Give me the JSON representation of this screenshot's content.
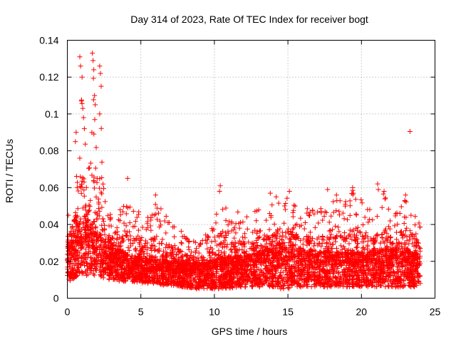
{
  "chart_data": {
    "type": "scatter",
    "title": "Day 314 of 2023, Rate Of TEC Index for receiver bogt",
    "xlabel": "GPS time / hours",
    "ylabel": "ROTI / TECUs",
    "xlim": [
      0,
      25
    ],
    "ylim": [
      0,
      0.14
    ],
    "x_ticks": [
      "0",
      "5",
      "10",
      "15",
      "20",
      "25"
    ],
    "y_ticks": [
      "0",
      "0.02",
      "0.04",
      "0.06",
      "0.08",
      "0.1",
      "0.12",
      "0.14"
    ],
    "grid": true,
    "marker": "+",
    "series_color": "#ff0000",
    "envelope": {
      "x": [
        0,
        0.25,
        0.5,
        0.75,
        1,
        1.25,
        1.5,
        1.75,
        2,
        2.25,
        2.5,
        2.75,
        3,
        3.5,
        4,
        4.5,
        5,
        5.5,
        6,
        6.5,
        7,
        7.5,
        8,
        8.5,
        9,
        9.5,
        10,
        10.5,
        11,
        11.5,
        12,
        12.5,
        13,
        13.5,
        14,
        14.5,
        15,
        15.5,
        16,
        16.5,
        17,
        17.5,
        18,
        18.5,
        19,
        19.5,
        20,
        20.5,
        21,
        21.5,
        22,
        22.5,
        23,
        23.5,
        24
      ],
      "low": [
        0.01,
        0.009,
        0.01,
        0.012,
        0.013,
        0.012,
        0.013,
        0.012,
        0.012,
        0.011,
        0.011,
        0.01,
        0.01,
        0.009,
        0.009,
        0.009,
        0.008,
        0.008,
        0.008,
        0.007,
        0.007,
        0.006,
        0.006,
        0.005,
        0.005,
        0.005,
        0.005,
        0.005,
        0.005,
        0.006,
        0.006,
        0.006,
        0.006,
        0.006,
        0.006,
        0.005,
        0.005,
        0.006,
        0.006,
        0.006,
        0.006,
        0.006,
        0.006,
        0.006,
        0.006,
        0.006,
        0.006,
        0.006,
        0.006,
        0.006,
        0.006,
        0.006,
        0.006,
        0.006,
        0.007
      ],
      "mid": [
        0.022,
        0.024,
        0.027,
        0.03,
        0.033,
        0.032,
        0.031,
        0.03,
        0.028,
        0.026,
        0.024,
        0.022,
        0.021,
        0.02,
        0.019,
        0.018,
        0.017,
        0.017,
        0.016,
        0.016,
        0.015,
        0.015,
        0.014,
        0.014,
        0.014,
        0.014,
        0.015,
        0.016,
        0.016,
        0.017,
        0.017,
        0.017,
        0.018,
        0.019,
        0.02,
        0.021,
        0.02,
        0.02,
        0.019,
        0.019,
        0.018,
        0.018,
        0.018,
        0.018,
        0.018,
        0.018,
        0.018,
        0.018,
        0.019,
        0.019,
        0.019,
        0.019,
        0.019,
        0.018,
        0.018
      ],
      "high": [
        0.046,
        0.05,
        0.06,
        0.075,
        0.12,
        0.08,
        0.07,
        0.128,
        0.078,
        0.125,
        0.06,
        0.05,
        0.046,
        0.045,
        0.062,
        0.05,
        0.048,
        0.044,
        0.052,
        0.048,
        0.042,
        0.04,
        0.034,
        0.032,
        0.03,
        0.036,
        0.04,
        0.06,
        0.045,
        0.046,
        0.05,
        0.044,
        0.05,
        0.05,
        0.052,
        0.055,
        0.056,
        0.05,
        0.048,
        0.05,
        0.048,
        0.05,
        0.058,
        0.056,
        0.054,
        0.06,
        0.058,
        0.048,
        0.05,
        0.06,
        0.05,
        0.052,
        0.056,
        0.052,
        0.04
      ]
    },
    "notable_points": [
      {
        "x": 0.85,
        "y": 0.131
      },
      {
        "x": 0.9,
        "y": 0.126
      },
      {
        "x": 1.0,
        "y": 0.12
      },
      {
        "x": 1.7,
        "y": 0.133
      },
      {
        "x": 1.75,
        "y": 0.129
      },
      {
        "x": 1.8,
        "y": 0.124
      },
      {
        "x": 2.2,
        "y": 0.126
      },
      {
        "x": 2.25,
        "y": 0.122
      },
      {
        "x": 1.85,
        "y": 0.11
      },
      {
        "x": 2.3,
        "y": 0.115
      },
      {
        "x": 2.2,
        "y": 0.1
      },
      {
        "x": 1.9,
        "y": 0.105
      },
      {
        "x": 1.05,
        "y": 0.103
      },
      {
        "x": 1.1,
        "y": 0.098
      },
      {
        "x": 0.6,
        "y": 0.09
      },
      {
        "x": 0.55,
        "y": 0.085
      },
      {
        "x": 23.3,
        "y": 0.0905
      },
      {
        "x": 4.1,
        "y": 0.065
      },
      {
        "x": 10.4,
        "y": 0.061
      },
      {
        "x": 10.35,
        "y": 0.058
      },
      {
        "x": 13.8,
        "y": 0.057
      },
      {
        "x": 14.2,
        "y": 0.055
      },
      {
        "x": 21.1,
        "y": 0.062
      },
      {
        "x": 21.15,
        "y": 0.059
      },
      {
        "x": 23.0,
        "y": 0.056
      },
      {
        "x": 22.95,
        "y": 0.053
      },
      {
        "x": 19.4,
        "y": 0.06
      },
      {
        "x": 19.45,
        "y": 0.057
      },
      {
        "x": 17.7,
        "y": 0.059
      },
      {
        "x": 15.1,
        "y": 0.058
      },
      {
        "x": 18.3,
        "y": 0.056
      },
      {
        "x": 6.0,
        "y": 0.056
      }
    ]
  }
}
